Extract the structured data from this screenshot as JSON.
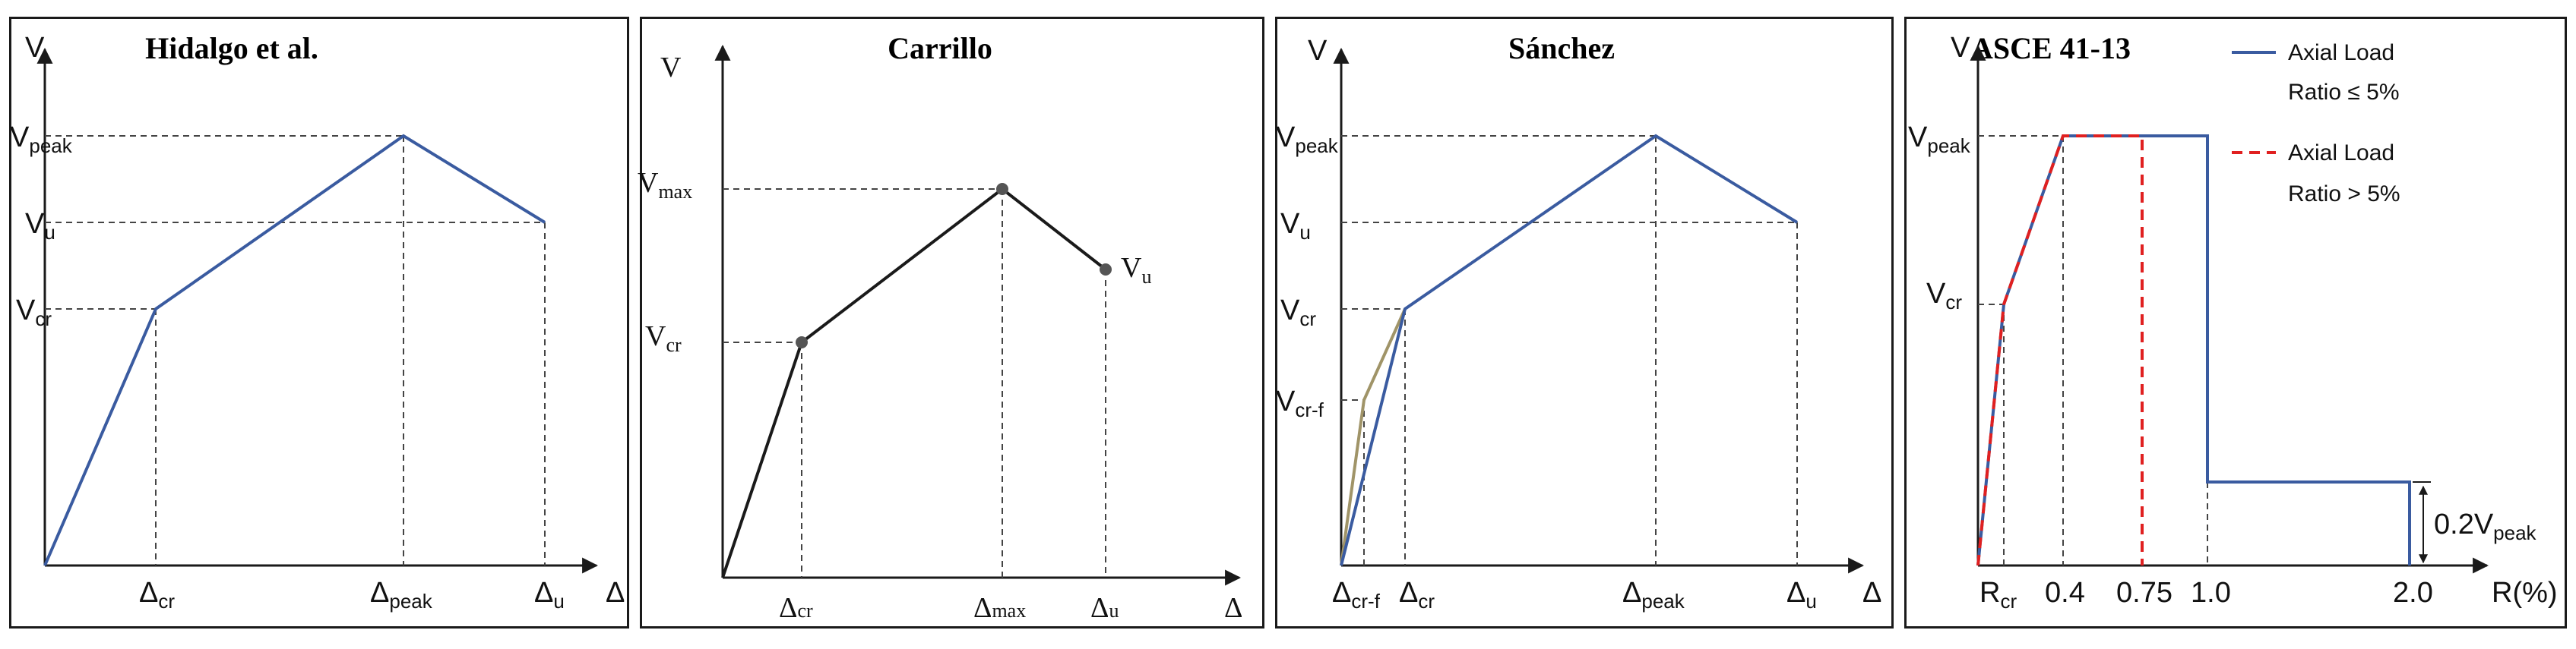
{
  "colors": {
    "blue": "#3a5ba0",
    "black": "#1a1a1a",
    "red": "#e02020",
    "olive": "#a09468",
    "grid": "#444444"
  },
  "panels": {
    "hidalgo": {
      "title": "Hidalgo et al.",
      "y_axis": "V",
      "x_axis": "Δ",
      "y_labels": {
        "peak_base": "V",
        "peak_sub": "peak",
        "u_base": "V",
        "u_sub": "u",
        "cr_base": "V",
        "cr_sub": "cr"
      },
      "x_labels": {
        "cr_base": "Δ",
        "cr_sub": "cr",
        "peak_base": "Δ",
        "peak_sub": "peak",
        "u_base": "Δ",
        "u_sub": "u"
      }
    },
    "carrillo": {
      "title": "Carrillo",
      "y_axis": "V",
      "x_axis": "Δ",
      "y_labels": {
        "max_base": "V",
        "max_sub": "max",
        "cr_base": "V",
        "cr_sub": "cr"
      },
      "point_label": {
        "base": "V",
        "sub": "u"
      },
      "x_labels": {
        "cr_base": "Δ",
        "cr_sub": "cr",
        "max_base": "Δ",
        "max_sub": "max",
        "u_base": "Δ",
        "u_sub": "u"
      }
    },
    "sanchez": {
      "title": "Sánchez",
      "y_axis": "V",
      "x_axis": "Δ",
      "y_labels": {
        "peak_base": "V",
        "peak_sub": "peak",
        "u_base": "V",
        "u_sub": "u",
        "cr_base": "V",
        "cr_sub": "cr",
        "crf_base": "V",
        "crf_sub": "cr-f"
      },
      "x_labels": {
        "crf_base": "Δ",
        "crf_sub": "cr-f",
        "cr_base": "Δ",
        "cr_sub": "cr",
        "peak_base": "Δ",
        "peak_sub": "peak",
        "u_base": "Δ",
        "u_sub": "u"
      }
    },
    "asce": {
      "title": "ASCE 41-13",
      "y_axis": "V",
      "x_axis": "R(%)",
      "y_labels": {
        "peak_base": "V",
        "peak_sub": "peak",
        "cr_base": "V",
        "cr_sub": "cr"
      },
      "x_labels": {
        "rcr_base": "R",
        "rcr_sub": "cr",
        "t04": "0.4",
        "t075": "0.75",
        "t10": "1.0",
        "t20": "2.0"
      },
      "residual_label": {
        "base": "0.2V",
        "sub": "peak"
      },
      "legend": {
        "blue_line1": "Axial Load",
        "blue_line2": "Ratio ≤ 5%",
        "red_line1": "Axial Load",
        "red_line2": "Ratio > 5%"
      }
    }
  }
}
